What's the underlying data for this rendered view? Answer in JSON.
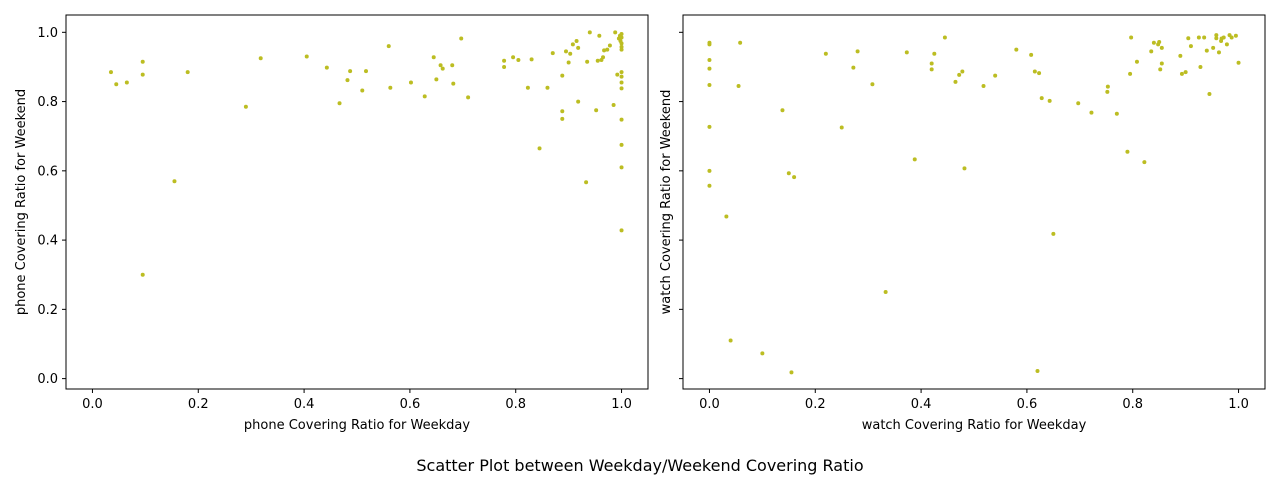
{
  "title": "Scatter Plot between Weekday/Weekend Covering Ratio",
  "chart_data": [
    {
      "type": "scatter",
      "xlabel": "phone Covering Ratio for Weekday",
      "ylabel": "phone Covering Ratio for Weekend",
      "xlim": [
        -0.05,
        1.05
      ],
      "ylim": [
        -0.03,
        1.05
      ],
      "xticks": [
        "0.0",
        "0.2",
        "0.4",
        "0.6",
        "0.8",
        "1.0"
      ],
      "yticks": [
        "0.0",
        "0.2",
        "0.4",
        "0.6",
        "0.8",
        "1.0"
      ],
      "show_ytick_labels": true,
      "color": "#bcbd22",
      "grid": false,
      "points": [
        [
          0.035,
          0.885
        ],
        [
          0.045,
          0.85
        ],
        [
          0.065,
          0.855
        ],
        [
          0.095,
          0.915
        ],
        [
          0.095,
          0.878
        ],
        [
          0.095,
          0.3
        ],
        [
          0.155,
          0.57
        ],
        [
          0.18,
          0.885
        ],
        [
          0.29,
          0.785
        ],
        [
          0.318,
          0.925
        ],
        [
          0.405,
          0.93
        ],
        [
          0.443,
          0.898
        ],
        [
          0.467,
          0.795
        ],
        [
          0.482,
          0.862
        ],
        [
          0.487,
          0.888
        ],
        [
          0.51,
          0.832
        ],
        [
          0.517,
          0.888
        ],
        [
          0.56,
          0.96
        ],
        [
          0.563,
          0.84
        ],
        [
          0.602,
          0.855
        ],
        [
          0.628,
          0.815
        ],
        [
          0.645,
          0.928
        ],
        [
          0.65,
          0.864
        ],
        [
          0.658,
          0.905
        ],
        [
          0.662,
          0.895
        ],
        [
          0.68,
          0.905
        ],
        [
          0.682,
          0.852
        ],
        [
          0.697,
          0.982
        ],
        [
          0.71,
          0.812
        ],
        [
          0.778,
          0.918
        ],
        [
          0.778,
          0.9
        ],
        [
          0.795,
          0.928
        ],
        [
          0.805,
          0.92
        ],
        [
          0.823,
          0.84
        ],
        [
          0.83,
          0.922
        ],
        [
          0.845,
          0.665
        ],
        [
          0.86,
          0.84
        ],
        [
          0.87,
          0.94
        ],
        [
          0.888,
          0.875
        ],
        [
          0.888,
          0.772
        ],
        [
          0.888,
          0.75
        ],
        [
          0.895,
          0.945
        ],
        [
          0.9,
          0.913
        ],
        [
          0.903,
          0.938
        ],
        [
          0.908,
          0.965
        ],
        [
          0.915,
          0.975
        ],
        [
          0.918,
          0.8
        ],
        [
          0.918,
          0.955
        ],
        [
          0.935,
          0.915
        ],
        [
          0.933,
          0.567
        ],
        [
          0.94,
          1.0
        ],
        [
          0.952,
          0.775
        ],
        [
          0.955,
          0.918
        ],
        [
          0.958,
          0.99
        ],
        [
          0.962,
          0.92
        ],
        [
          0.965,
          0.928
        ],
        [
          0.967,
          0.948
        ],
        [
          0.973,
          0.95
        ],
        [
          0.978,
          0.962
        ],
        [
          0.985,
          0.79
        ],
        [
          0.988,
          1.0
        ],
        [
          0.992,
          0.878
        ],
        [
          0.995,
          0.982
        ],
        [
          0.997,
          0.99
        ],
        [
          0.998,
          0.975
        ],
        [
          1.0,
          0.995
        ],
        [
          1.0,
          0.985
        ],
        [
          1.0,
          0.968
        ],
        [
          1.0,
          0.958
        ],
        [
          1.0,
          0.95
        ],
        [
          1.0,
          0.885
        ],
        [
          1.0,
          0.872
        ],
        [
          1.0,
          0.855
        ],
        [
          1.0,
          0.838
        ],
        [
          1.0,
          0.748
        ],
        [
          1.0,
          0.675
        ],
        [
          1.0,
          0.61
        ],
        [
          1.0,
          0.428
        ]
      ]
    },
    {
      "type": "scatter",
      "xlabel": "watch Covering Ratio for Weekday",
      "ylabel": "watch Covering Ratio for Weekend",
      "xlim": [
        -0.05,
        1.05
      ],
      "ylim": [
        -0.03,
        1.05
      ],
      "xticks": [
        "0.0",
        "0.2",
        "0.4",
        "0.6",
        "0.8",
        "1.0"
      ],
      "yticks": [
        "0.0",
        "0.2",
        "0.4",
        "0.6",
        "0.8",
        "1.0"
      ],
      "show_ytick_labels": false,
      "color": "#bcbd22",
      "grid": false,
      "points": [
        [
          0.0,
          0.97
        ],
        [
          0.0,
          0.965
        ],
        [
          0.0,
          0.92
        ],
        [
          0.0,
          0.895
        ],
        [
          0.0,
          0.848
        ],
        [
          0.0,
          0.727
        ],
        [
          0.0,
          0.6
        ],
        [
          0.0,
          0.557
        ],
        [
          0.032,
          0.468
        ],
        [
          0.04,
          0.11
        ],
        [
          0.055,
          0.845
        ],
        [
          0.058,
          0.97
        ],
        [
          0.1,
          0.073
        ],
        [
          0.138,
          0.775
        ],
        [
          0.15,
          0.593
        ],
        [
          0.155,
          0.018
        ],
        [
          0.16,
          0.582
        ],
        [
          0.22,
          0.938
        ],
        [
          0.25,
          0.725
        ],
        [
          0.272,
          0.898
        ],
        [
          0.28,
          0.945
        ],
        [
          0.308,
          0.85
        ],
        [
          0.333,
          0.25
        ],
        [
          0.373,
          0.942
        ],
        [
          0.388,
          0.633
        ],
        [
          0.42,
          0.91
        ],
        [
          0.42,
          0.893
        ],
        [
          0.425,
          0.938
        ],
        [
          0.445,
          0.985
        ],
        [
          0.465,
          0.857
        ],
        [
          0.472,
          0.877
        ],
        [
          0.478,
          0.887
        ],
        [
          0.482,
          0.607
        ],
        [
          0.518,
          0.845
        ],
        [
          0.54,
          0.875
        ],
        [
          0.58,
          0.95
        ],
        [
          0.608,
          0.935
        ],
        [
          0.615,
          0.887
        ],
        [
          0.623,
          0.882
        ],
        [
          0.62,
          0.022
        ],
        [
          0.628,
          0.81
        ],
        [
          0.643,
          0.802
        ],
        [
          0.65,
          0.418
        ],
        [
          0.697,
          0.795
        ],
        [
          0.722,
          0.768
        ],
        [
          0.752,
          0.828
        ],
        [
          0.753,
          0.843
        ],
        [
          0.77,
          0.765
        ],
        [
          0.79,
          0.655
        ],
        [
          0.795,
          0.88
        ],
        [
          0.797,
          0.985
        ],
        [
          0.808,
          0.915
        ],
        [
          0.822,
          0.625
        ],
        [
          0.835,
          0.945
        ],
        [
          0.84,
          0.97
        ],
        [
          0.848,
          0.965
        ],
        [
          0.85,
          0.972
        ],
        [
          0.852,
          0.893
        ],
        [
          0.855,
          0.955
        ],
        [
          0.855,
          0.91
        ],
        [
          0.89,
          0.932
        ],
        [
          0.893,
          0.88
        ],
        [
          0.9,
          0.885
        ],
        [
          0.905,
          0.983
        ],
        [
          0.91,
          0.96
        ],
        [
          0.925,
          0.985
        ],
        [
          0.928,
          0.9
        ],
        [
          0.935,
          0.985
        ],
        [
          0.94,
          0.947
        ],
        [
          0.945,
          0.822
        ],
        [
          0.952,
          0.955
        ],
        [
          0.958,
          0.992
        ],
        [
          0.958,
          0.983
        ],
        [
          0.963,
          0.942
        ],
        [
          0.967,
          0.975
        ],
        [
          0.968,
          0.982
        ],
        [
          0.972,
          0.985
        ],
        [
          0.978,
          0.965
        ],
        [
          0.983,
          0.992
        ],
        [
          0.987,
          0.985
        ],
        [
          0.995,
          0.99
        ],
        [
          1.0,
          0.912
        ]
      ]
    }
  ]
}
